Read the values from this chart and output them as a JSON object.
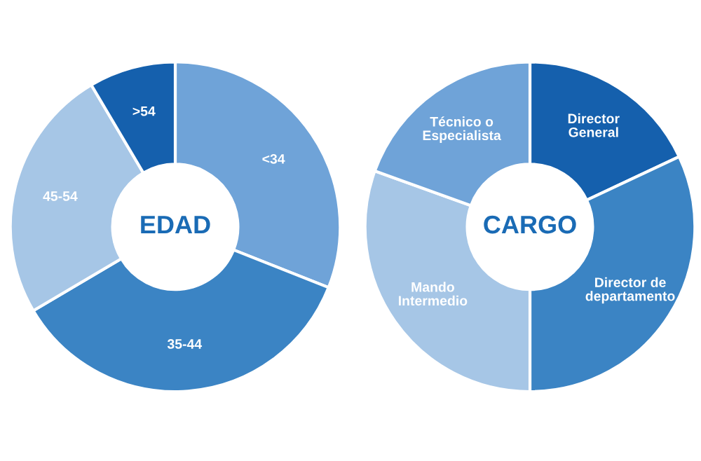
{
  "chart_data": [
    {
      "type": "donut",
      "title": "EDAD",
      "categories": [
        "<34",
        "35-44",
        "45-54",
        ">54"
      ],
      "values": [
        31,
        35.5,
        25,
        8.5
      ],
      "colors": [
        "#6fa3d8",
        "#3b84c4",
        "#a6c6e6",
        "#1560ad"
      ]
    },
    {
      "type": "donut",
      "title": "CARGO",
      "categories": [
        "Director\nGeneral",
        "Director de\ndepartamento",
        "Mando\nIntermedio",
        "Técnico o\nEspecialista"
      ],
      "values": [
        18,
        32,
        30.5,
        19.5
      ],
      "colors": [
        "#1560ad",
        "#3b84c4",
        "#a6c6e6",
        "#6fa3d8"
      ]
    }
  ]
}
